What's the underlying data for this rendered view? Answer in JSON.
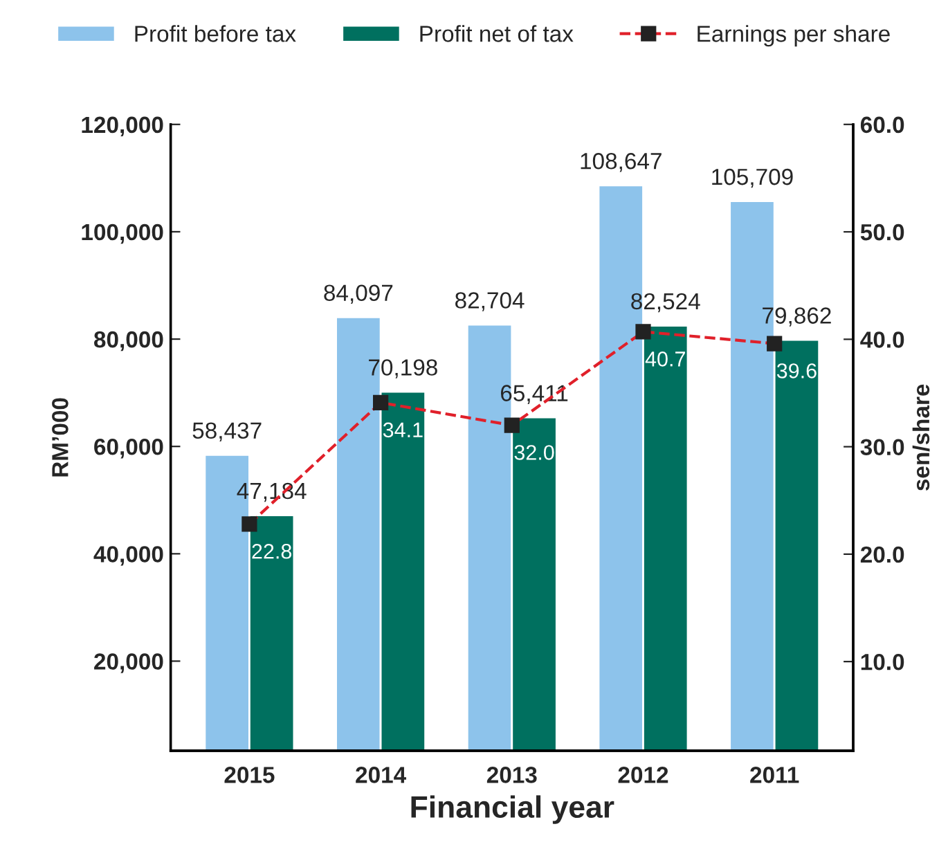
{
  "chart_data": {
    "type": "bar",
    "xlabel": "Financial year",
    "ylabel": "RM’000",
    "y2label": "sen/share",
    "categories": [
      "2015",
      "2014",
      "2013",
      "2012",
      "2011"
    ],
    "series": [
      {
        "name": "Profit before tax",
        "color": "#8dc3eb",
        "values": [
          58437,
          84097,
          82704,
          108647,
          105709
        ],
        "value_labels": [
          "58,437",
          "84,097",
          "82,704",
          "108,647",
          "105,709"
        ]
      },
      {
        "name": "Profit net of tax",
        "color": "#00705f",
        "values": [
          47184,
          70198,
          65411,
          82524,
          79862
        ],
        "value_labels": [
          "47,184",
          "70,198",
          "65,411",
          "82,524",
          "79,862"
        ]
      },
      {
        "name": "Earnings per share",
        "type": "line",
        "axis": "y2",
        "color": "#e0202a",
        "marker": "square",
        "line_style": "dashed",
        "values": [
          22.8,
          34.1,
          32.0,
          40.7,
          39.6
        ],
        "value_labels": [
          "22.8",
          "34.1",
          "32.0",
          "40.7",
          "39.6"
        ]
      }
    ],
    "ylim": [
      3300,
      120000
    ],
    "yticks": [
      {
        "value": 20000,
        "label": "20,000"
      },
      {
        "value": 40000,
        "label": "40,000"
      },
      {
        "value": 60000,
        "label": "60,000"
      },
      {
        "value": 80000,
        "label": "80,000"
      },
      {
        "value": 100000,
        "label": "100,000"
      },
      {
        "value": 120000,
        "label": "120,000"
      }
    ],
    "y2lim": [
      1.7,
      60
    ],
    "y2ticks": [
      {
        "value": 10,
        "label": "10.0"
      },
      {
        "value": 20,
        "label": "20.0"
      },
      {
        "value": 30,
        "label": "30.0"
      },
      {
        "value": 40,
        "label": "40.0"
      },
      {
        "value": 50,
        "label": "50.0"
      },
      {
        "value": 60,
        "label": "60.0"
      }
    ],
    "legend": "top",
    "grid": false
  }
}
